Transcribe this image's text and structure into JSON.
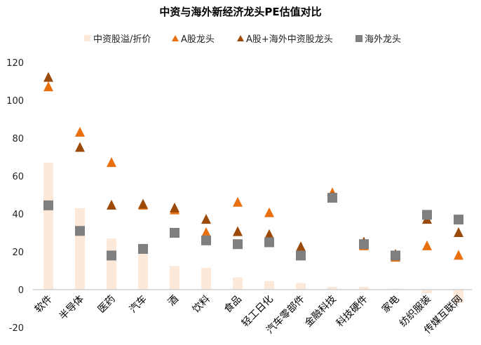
{
  "chart_data": {
    "type": "bar",
    "title": "中资与海外新经济龙头PE估值对比",
    "legend_position": "top",
    "grid": false,
    "ylim": [
      -20,
      120
    ],
    "yticks": [
      -20,
      0,
      20,
      40,
      60,
      80,
      100,
      120
    ],
    "categories": [
      "软件",
      "半导体",
      "医药",
      "汽车",
      "酒",
      "饮料",
      "食品",
      "轻工日化",
      "汽车零部件",
      "金融科技",
      "科技硬件",
      "家电",
      "纺织服装",
      "传媒互联网"
    ],
    "series": [
      {
        "name": "中资股溢/折价",
        "kind": "bar",
        "color": "#FDE9DA",
        "values": [
          67,
          43,
          27,
          19,
          12.5,
          11.5,
          6.5,
          4.5,
          3.5,
          1.5,
          1.5,
          0.5,
          -2,
          -7
        ]
      },
      {
        "name": "A股龙头",
        "kind": "triangle",
        "color": "#E8700F",
        "values": [
          107,
          83,
          67,
          44.5,
          42,
          30,
          46,
          40.5,
          21,
          51,
          23,
          17,
          23,
          18
        ]
      },
      {
        "name": "A股+海外中资股龙头",
        "kind": "triangle",
        "color": "#9C4A0A",
        "values": [
          112,
          75,
          44.5,
          45,
          43,
          37,
          30.5,
          29,
          22.5,
          49,
          25,
          18.5,
          37,
          30
        ]
      },
      {
        "name": "海外龙头",
        "kind": "square",
        "color": "#7F7F7F",
        "values": [
          44.5,
          31,
          18,
          21.5,
          30,
          26,
          24,
          25,
          18,
          48.5,
          24,
          18,
          39.5,
          37
        ]
      }
    ]
  }
}
